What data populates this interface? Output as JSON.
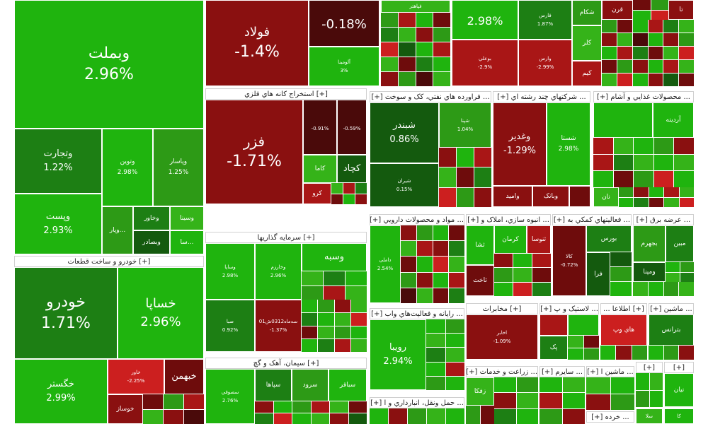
{
  "headers": {
    "auto": "[+] خودرو و ساخت قطعات",
    "mining": "[+] استخراج کانه هاي فلزي",
    "invest": "[+] سرمايه گذاريها",
    "cement": "[+] سيمان، آهک و گچ",
    "petro": "... فراورده هاي نفتي، کک و سوخت [+]",
    "multi": "... شرکتهاي چند رشته اي [+]",
    "food": "... محصولات غذايي و آشام [+]",
    "pharma": "... مواد و محصولات دارويي [+]",
    "realestate": "... انبوه سازي، املاک و [+]",
    "financial": "... فعاليتهاي کمکي به [+]",
    "power": "... عرضه برق [+]",
    "it": "... رايانه و فعاليت‌هاي واب [+]",
    "telecom": "[+] مخابرات",
    "plastic": "... لاستيک و پ [+]",
    "info": "[+] اطلاعا ...",
    "machinery": "... ماشين [+]",
    "agri": "... زراعت و خدمات [+]",
    "transport": "... حمل ونقل، انبارداري و ا [+]",
    "other1": "... سايرم [+]",
    "other2": "... ماشين ا [+]",
    "other3": "... خرده [+]"
  },
  "tiles": {
    "vabmelat": {
      "name": "وبملت",
      "pct": "2.96%"
    },
    "vtejarat": {
      "name": "وتجارت",
      "pct": "1.22%"
    },
    "vtovin": {
      "name": "وتوين",
      "pct": "2.98%"
    },
    "vpasar": {
      "name": "وپاسار",
      "pct": "1.25%"
    },
    "vpost": {
      "name": "وپست",
      "pct": "2.93%"
    },
    "vkhavar": {
      "name": "وخاور"
    },
    "vsina": {
      "name": "وسينا"
    },
    "vbsader": {
      "name": "وبصادر"
    },
    "vpar": {
      "name": "وپار..."
    },
    "sa": {
      "name": "سا..."
    },
    "foolad": {
      "name": "فولاد",
      "pct": "-1.4%"
    },
    "big1": {
      "pct": "-0.18%"
    },
    "alumina": {
      "name": "آلومينا",
      "pct": "3%"
    },
    "top_small1": {
      "name": "فپاهتر"
    },
    "top_g": {
      "pct": "2.98%"
    },
    "fars": {
      "name": "فارس",
      "pct": "1.87%"
    },
    "boali": {
      "name": "بوعلي",
      "pct": "-2.9%"
    },
    "varis": {
      "name": "وارس",
      "pct": "-2.99%"
    },
    "shekam": {
      "name": "شکام"
    },
    "kalar": {
      "name": "کلر"
    },
    "kim": {
      "name": "کيم"
    },
    "qarn": {
      "name": "قرن"
    },
    "ta": {
      "name": "تا"
    },
    "faz": {
      "name": "فزر",
      "pct": "-1.71%"
    },
    "kachad": {
      "name": "کچاد"
    },
    "kama": {
      "name": "کاما"
    },
    "kro": {
      "name": "کرو"
    },
    "fmeli": {
      "pct": "-0.91%"
    },
    "fbahonar": {
      "pct": "-0.59%"
    },
    "khodro": {
      "name": "خودرو",
      "pct": "1.71%"
    },
    "khasapa": {
      "name": "خساپا",
      "pct": "2.96%"
    },
    "khgostar": {
      "name": "خگستر",
      "pct": "2.99%"
    },
    "khbahman": {
      "name": "خبهمن"
    },
    "khavar": {
      "name": "خاور",
      "pct": "-2.25%"
    },
    "khosaz": {
      "name": "خوساز"
    },
    "shbandar": {
      "name": "شبندر",
      "pct": "0.86%"
    },
    "shiran": {
      "name": "شيران",
      "pct": "0.15%"
    },
    "shpna": {
      "name": "شپنا",
      "pct": "1.04%"
    },
    "vghadir": {
      "name": "وغدير",
      "pct": "-1.29%"
    },
    "shasta": {
      "name": "شستا",
      "pct": "2.98%"
    },
    "vbank": {
      "name": "وبانک"
    },
    "vamid": {
      "name": "واميد"
    },
    "ardina": {
      "name": "آردينه"
    },
    "naan": {
      "name": "نان"
    },
    "vsapa": {
      "name": "وساپا",
      "pct": "2.98%"
    },
    "vkharazm": {
      "name": "وخارزم",
      "pct": "2.96%"
    },
    "vsebah": {
      "name": "وسبه"
    },
    "sepa": {
      "name": "صبا",
      "pct": "0.92%"
    },
    "semat": {
      "name": "سه‌ماه0312ش01",
      "pct": "-1.37%"
    },
    "dsobhan": {
      "name": "داملی",
      "pct": "2.54%"
    },
    "kerman": {
      "name": "کرمان"
    },
    "sasa": {
      "name": "ثنوسا"
    },
    "tashat": {
      "name": "ثاخت"
    },
    "sashat": {
      "name": "ثشا"
    },
    "boors": {
      "name": "بورس"
    },
    "kala": {
      "name": "کالا",
      "pct": "-0.72%"
    },
    "fara": {
      "name": "فرا"
    },
    "bjahrom": {
      "name": "بجهرم"
    },
    "mobin": {
      "name": "مبين"
    },
    "vmapna": {
      "name": "ومپنا"
    },
    "ruya": {
      "name": "رويبا",
      "pct": "2.94%"
    },
    "akhaber": {
      "name": "اخابر",
      "pct": "-1.09%"
    },
    "hiweb": {
      "name": "هاي وپ"
    },
    "btarans": {
      "name": "بترانس"
    },
    "pak": {
      "name": "پک"
    },
    "zafka": {
      "name": "زفکا"
    },
    "sepaha": {
      "name": "سپاها"
    },
    "sorood": {
      "name": "سرود"
    },
    "sbaqer": {
      "name": "سباقر"
    },
    "soofi": {
      "name": "سصوفي",
      "pct": "2.76%"
    },
    "nian": {
      "name": "نيان"
    },
    "sela": {
      "name": "سلا"
    },
    "ka": {
      "name": "کا"
    }
  },
  "colors": {
    "up": "#1fb40e",
    "up_dark": "#1d7f14",
    "down": "#8a1010",
    "down_dark": "#4a0a0a",
    "background": "#ffffff"
  }
}
